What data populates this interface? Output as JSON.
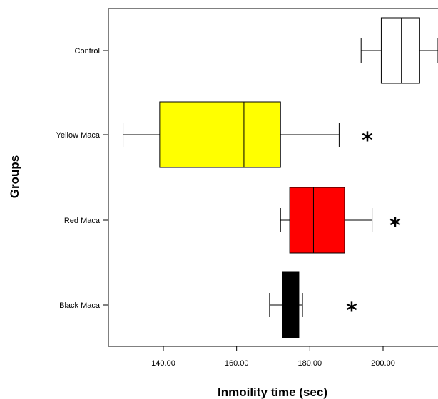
{
  "chart_data": {
    "type": "boxplot",
    "orientation": "horizontal",
    "title": "",
    "xlabel": "Inmoility time (sec)",
    "ylabel": "Groups",
    "xlim": [
      125,
      215
    ],
    "xticks": [
      140,
      160,
      180,
      200
    ],
    "xtick_labels": [
      "140.00",
      "160.00",
      "180.00",
      "200.00"
    ],
    "grid": false,
    "legend": "none",
    "categories": [
      "Control",
      "Yellow Maca",
      "Red Maca",
      "Black Maca"
    ],
    "series": [
      {
        "category": "Control",
        "whisker_low": 194,
        "q1": 199.5,
        "median": 205,
        "q3": 210,
        "whisker_high": 215,
        "color": "#ffffff",
        "annotation": ""
      },
      {
        "category": "Yellow Maca",
        "whisker_low": 129,
        "q1": 139,
        "median": 162,
        "q3": 172,
        "whisker_high": 188,
        "color": "#ffff00",
        "annotation": "*"
      },
      {
        "category": "Red Maca",
        "whisker_low": 172,
        "q1": 174.5,
        "median": 181,
        "q3": 189.5,
        "whisker_high": 197,
        "color": "#ff0000",
        "annotation": "*"
      },
      {
        "category": "Black Maca",
        "whisker_low": 169,
        "q1": 172.5,
        "median": 175,
        "q3": 177,
        "whisker_high": 178,
        "color": "#000000",
        "annotation": "*"
      }
    ]
  }
}
